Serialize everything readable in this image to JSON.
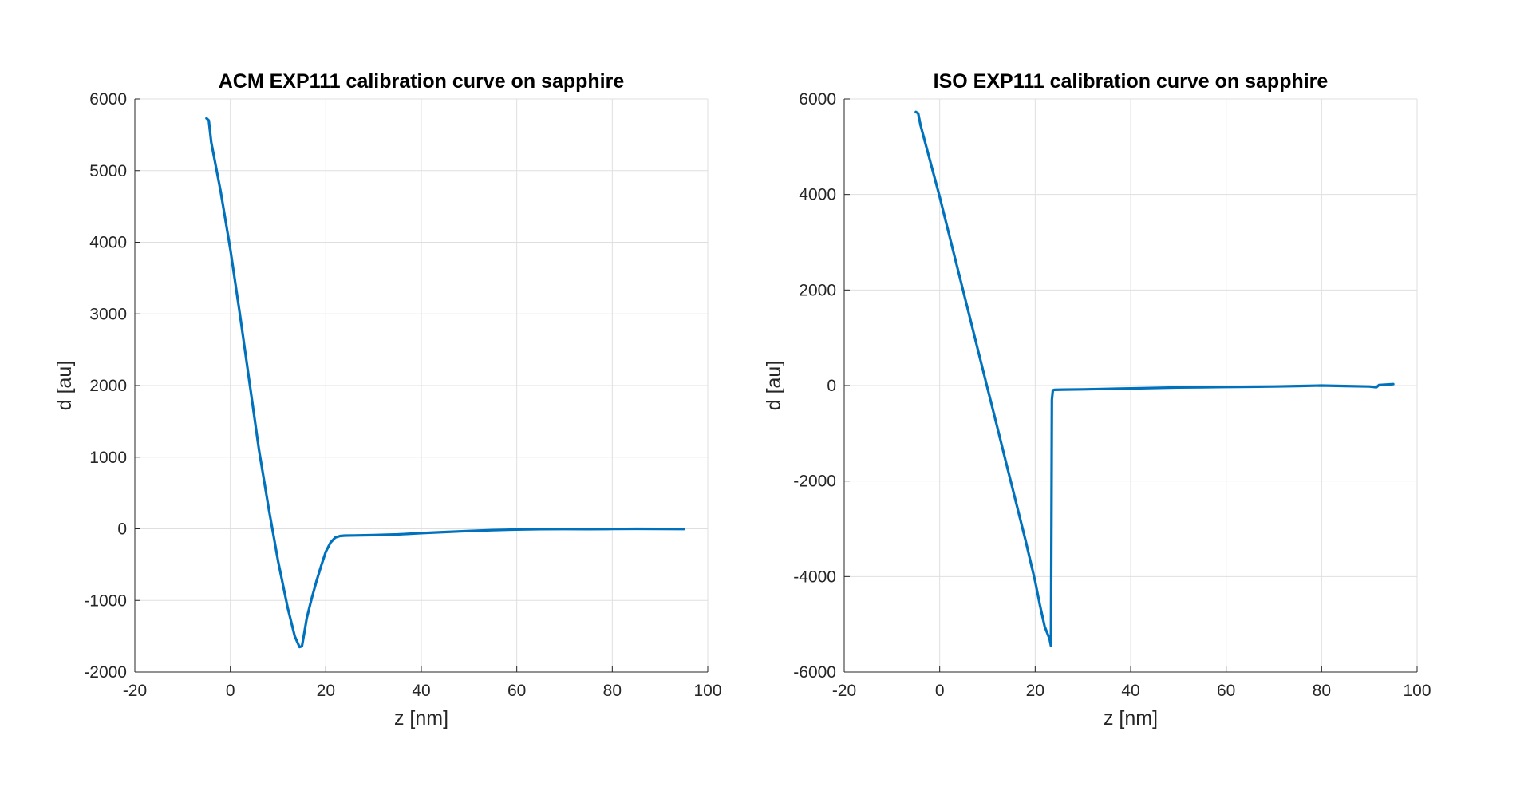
{
  "chart_data": [
    {
      "type": "line",
      "title": "ACM EXP111 calibration curve on sapphire",
      "xlabel": "z [nm]",
      "ylabel": "d [au]",
      "xlim": [
        -20,
        100
      ],
      "ylim": [
        -2000,
        6000
      ],
      "xticks": [
        -20,
        0,
        20,
        40,
        60,
        80,
        100
      ],
      "yticks": [
        -2000,
        -1000,
        0,
        1000,
        2000,
        3000,
        4000,
        5000,
        6000
      ],
      "xtick_labels": [
        "-20",
        "0",
        "20",
        "40",
        "60",
        "80",
        "100"
      ],
      "ytick_labels": [
        "-2000",
        "-1000",
        "0",
        "1000",
        "2000",
        "3000",
        "4000",
        "5000",
        "6000"
      ],
      "grid": true,
      "color": "#0072BD",
      "series": [
        {
          "x": [
            -5,
            -4.5,
            -4,
            -2,
            0,
            2,
            4,
            6,
            8,
            10,
            12,
            13.5,
            14.5,
            15,
            15.5,
            16,
            17,
            18,
            19,
            20,
            21,
            22,
            23,
            24,
            26,
            30,
            35,
            40,
            45,
            50,
            55,
            60,
            65,
            70,
            75,
            80,
            85,
            90,
            95
          ],
          "y": [
            5730,
            5700,
            5400,
            4700,
            3900,
            3000,
            2050,
            1100,
            300,
            -450,
            -1100,
            -1500,
            -1650,
            -1640,
            -1450,
            -1250,
            -980,
            -740,
            -520,
            -320,
            -190,
            -120,
            -100,
            -95,
            -92,
            -88,
            -78,
            -60,
            -45,
            -30,
            -18,
            -10,
            -5,
            -3,
            -4,
            -2,
            0,
            -1,
            -3
          ]
        }
      ]
    },
    {
      "type": "line",
      "title": "ISO EXP111 calibration curve on sapphire",
      "xlabel": "z [nm]",
      "ylabel": "d [au]",
      "xlim": [
        -20,
        100
      ],
      "ylim": [
        -6000,
        6000
      ],
      "xticks": [
        -20,
        0,
        20,
        40,
        60,
        80,
        100
      ],
      "yticks": [
        -6000,
        -4000,
        -2000,
        0,
        2000,
        4000,
        6000
      ],
      "xtick_labels": [
        "-20",
        "0",
        "20",
        "40",
        "60",
        "80",
        "100"
      ],
      "ytick_labels": [
        "-6000",
        "-4000",
        "-2000",
        "0",
        "2000",
        "4000",
        "6000"
      ],
      "grid": true,
      "color": "#0072BD",
      "series": [
        {
          "x": [
            -5,
            -4.5,
            -4,
            -2,
            0,
            2,
            4,
            6,
            8,
            10,
            12,
            14,
            16,
            18,
            20,
            21,
            22,
            23,
            23.3,
            23.4,
            23.5,
            23.7,
            24,
            26,
            30,
            35,
            40,
            45,
            50,
            55,
            60,
            65,
            70,
            75,
            80,
            85,
            90,
            91.5,
            92,
            95
          ],
          "y": [
            5730,
            5700,
            5450,
            4700,
            3950,
            3150,
            2350,
            1550,
            750,
            -50,
            -850,
            -1650,
            -2450,
            -3250,
            -4100,
            -4600,
            -5050,
            -5300,
            -5450,
            -3000,
            -300,
            -100,
            -90,
            -85,
            -80,
            -70,
            -60,
            -50,
            -40,
            -35,
            -30,
            -25,
            -20,
            -10,
            0,
            -10,
            -20,
            -35,
            10,
            30
          ]
        }
      ]
    }
  ]
}
